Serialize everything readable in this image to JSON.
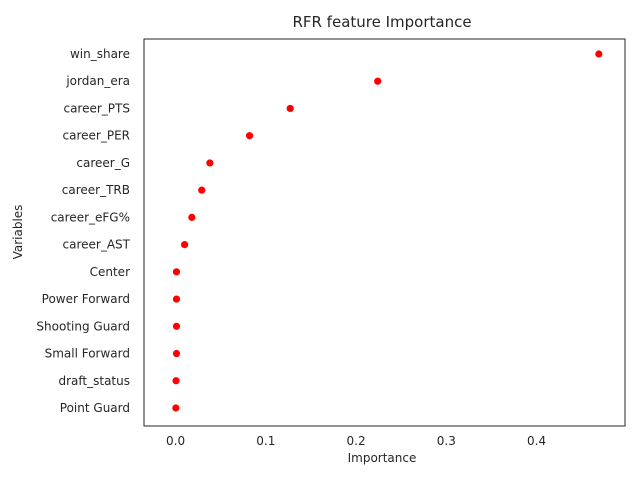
{
  "chart_data": {
    "type": "scatter",
    "title": "RFR feature Importance",
    "xlabel": "Importance",
    "ylabel": "Variables",
    "xlim": [
      -0.035,
      0.498
    ],
    "xticks": [
      0.0,
      0.1,
      0.2,
      0.3,
      0.4
    ],
    "xtick_labels": [
      "0.0",
      "0.1",
      "0.2",
      "0.3",
      "0.4"
    ],
    "grid": false,
    "marker_color": "#ff0000",
    "categories": [
      "win_share",
      "jordan_era",
      "career_PTS",
      "career_PER",
      "career_G",
      "career_TRB",
      "career_eFG%",
      "career_AST",
      "Center",
      "Power Forward",
      "Shooting Guard",
      "Small Forward",
      "draft_status",
      "Point Guard"
    ],
    "values": [
      0.469,
      0.224,
      0.127,
      0.082,
      0.038,
      0.029,
      0.018,
      0.01,
      0.001,
      0.001,
      0.001,
      0.001,
      0.0005,
      0.0003
    ]
  }
}
